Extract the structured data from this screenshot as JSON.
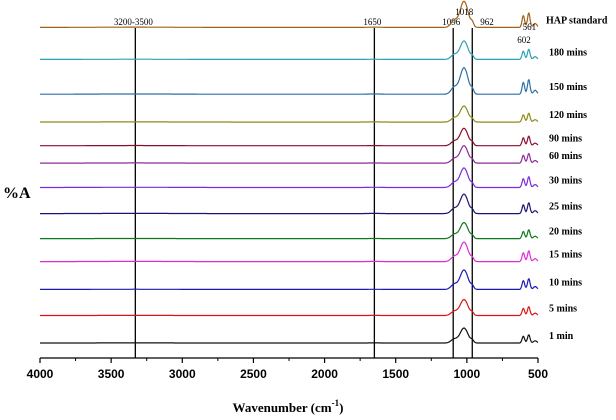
{
  "chart_data": {
    "type": "line",
    "xlabel": "Wavenumber (cm",
    "xlabel_sup": "-1",
    "xlabel_close": ")",
    "ylabel": "%A",
    "xlim": [
      4000,
      500
    ],
    "x_ticks": [
      4000,
      3500,
      3000,
      2500,
      2000,
      1500,
      1000,
      500
    ],
    "reference_lines": [
      {
        "x": 3330,
        "label": "3200-3500"
      },
      {
        "x": 1650,
        "label": "1650"
      },
      {
        "x": 1096,
        "label": "1096"
      },
      {
        "x": 962,
        "label": "962"
      }
    ],
    "annotations": [
      {
        "x": 1018,
        "label": "1018"
      },
      {
        "x": 602,
        "label": "602"
      },
      {
        "x": 561,
        "label": "561"
      }
    ],
    "series": [
      {
        "name": "HAP standard",
        "color": "#a0621a",
        "baseline": 0.95,
        "peak": 0.075
      },
      {
        "name": "180 mins",
        "color": "#2aa1b4",
        "baseline": 0.858,
        "peak": 0.053
      },
      {
        "name": "150 mins",
        "color": "#2d6fa8",
        "baseline": 0.758,
        "peak": 0.076
      },
      {
        "name": "120 mins",
        "color": "#8f8b16",
        "baseline": 0.678,
        "peak": 0.046
      },
      {
        "name": "90 mins",
        "color": "#8b0f2e",
        "baseline": 0.61,
        "peak": 0.05
      },
      {
        "name": "60 mins",
        "color": "#8c2b9a",
        "baseline": 0.56,
        "peak": 0.05
      },
      {
        "name": "30 mins",
        "color": "#7b2be0",
        "baseline": 0.49,
        "peak": 0.056
      },
      {
        "name": "25 mins",
        "color": "#1b1670",
        "baseline": 0.415,
        "peak": 0.056
      },
      {
        "name": "20 mins",
        "color": "#0b7a1c",
        "baseline": 0.343,
        "peak": 0.046
      },
      {
        "name": "15 mins",
        "color": "#e02ad6",
        "baseline": 0.277,
        "peak": 0.056
      },
      {
        "name": "10 mins",
        "color": "#1a1ab4",
        "baseline": 0.197,
        "peak": 0.056
      },
      {
        "name": "5 mins",
        "color": "#e01414",
        "baseline": 0.122,
        "peak": 0.046
      },
      {
        "name": "1 min",
        "color": "#111111",
        "baseline": 0.043,
        "peak": 0.043
      }
    ]
  }
}
